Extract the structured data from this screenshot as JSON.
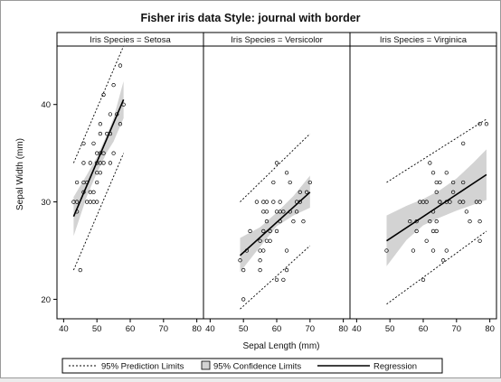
{
  "chart_data": {
    "type": "scatter",
    "title": "Fisher iris data Style: journal with border",
    "xlabel": "Sepal Length (mm)",
    "ylabel": "Sepal Width (mm)",
    "xlim": [
      38,
      82
    ],
    "ylim": [
      18,
      46
    ],
    "xticks": [
      40,
      50,
      60,
      70,
      80
    ],
    "yticks": [
      20,
      30,
      40
    ],
    "xtick_labels": [
      "40",
      "50",
      "60",
      "70",
      "80"
    ],
    "ytick_labels": [
      "20",
      "30",
      "40"
    ],
    "grid": false,
    "legend_position": "bottom",
    "legend": {
      "prediction": "95% Prediction Limits",
      "confidence": "95% Confidence Limits",
      "regression": "Regression"
    },
    "panels": [
      {
        "label": "Iris Species = Setosa",
        "x_range": [
          43,
          58
        ],
        "regression": [
          [
            43,
            28.5
          ],
          [
            58,
            40.5
          ]
        ],
        "confidence_upper": [
          [
            43,
            30.5
          ],
          [
            47,
            32.8
          ],
          [
            50,
            34.6
          ],
          [
            53,
            36.9
          ],
          [
            55,
            38.6
          ],
          [
            58,
            42.4
          ]
        ],
        "confidence_lower": [
          [
            43,
            26.5
          ],
          [
            47,
            30.6
          ],
          [
            50,
            33.0
          ],
          [
            53,
            35.1
          ],
          [
            55,
            36.2
          ],
          [
            58,
            38.6
          ]
        ],
        "prediction_upper": [
          [
            43,
            34.0
          ],
          [
            58,
            46.0
          ]
        ],
        "prediction_lower": [
          [
            43,
            23.0
          ],
          [
            58,
            35.0
          ]
        ],
        "points": [
          [
            43,
            30
          ],
          [
            44,
            29
          ],
          [
            44,
            30
          ],
          [
            44,
            32
          ],
          [
            45,
            23
          ],
          [
            46,
            31
          ],
          [
            46,
            32
          ],
          [
            46,
            34
          ],
          [
            46,
            36
          ],
          [
            47,
            32
          ],
          [
            47,
            30
          ],
          [
            48,
            30
          ],
          [
            48,
            31
          ],
          [
            48,
            34
          ],
          [
            49,
            30
          ],
          [
            49,
            31
          ],
          [
            49,
            36
          ],
          [
            50,
            30
          ],
          [
            50,
            32
          ],
          [
            50,
            33
          ],
          [
            50,
            34
          ],
          [
            50,
            35
          ],
          [
            51,
            33
          ],
          [
            51,
            34
          ],
          [
            51,
            35
          ],
          [
            51,
            37
          ],
          [
            51,
            38
          ],
          [
            52,
            34
          ],
          [
            52,
            35
          ],
          [
            52,
            41
          ],
          [
            53,
            37
          ],
          [
            54,
            34
          ],
          [
            54,
            37
          ],
          [
            54,
            39
          ],
          [
            55,
            35
          ],
          [
            55,
            42
          ],
          [
            56,
            39
          ],
          [
            57,
            38
          ],
          [
            57,
            44
          ],
          [
            58,
            40
          ]
        ]
      },
      {
        "label": "Iris Species = Versicolor",
        "x_range": [
          49,
          70
        ],
        "regression": [
          [
            49,
            24.5
          ],
          [
            70,
            31.0
          ]
        ],
        "confidence_upper": [
          [
            49,
            26.3
          ],
          [
            55,
            27.4
          ],
          [
            60,
            28.9
          ],
          [
            65,
            30.6
          ],
          [
            70,
            32.7
          ]
        ],
        "confidence_lower": [
          [
            49,
            22.8
          ],
          [
            55,
            25.4
          ],
          [
            60,
            27.5
          ],
          [
            65,
            28.6
          ],
          [
            70,
            29.4
          ]
        ],
        "prediction_upper": [
          [
            49,
            30.0
          ],
          [
            70,
            37.0
          ]
        ],
        "prediction_lower": [
          [
            49,
            19.0
          ],
          [
            70,
            25.5
          ]
        ],
        "points": [
          [
            49,
            24
          ],
          [
            50,
            20
          ],
          [
            50,
            23
          ],
          [
            51,
            25
          ],
          [
            52,
            27
          ],
          [
            54,
            30
          ],
          [
            55,
            23
          ],
          [
            55,
            24
          ],
          [
            55,
            25
          ],
          [
            55,
            26
          ],
          [
            56,
            25
          ],
          [
            56,
            27
          ],
          [
            56,
            29
          ],
          [
            56,
            30
          ],
          [
            57,
            26
          ],
          [
            57,
            28
          ],
          [
            57,
            29
          ],
          [
            57,
            30
          ],
          [
            58,
            26
          ],
          [
            58,
            27
          ],
          [
            59,
            30
          ],
          [
            59,
            32
          ],
          [
            60,
            22
          ],
          [
            60,
            27
          ],
          [
            60,
            29
          ],
          [
            60,
            34
          ],
          [
            61,
            28
          ],
          [
            61,
            29
          ],
          [
            61,
            30
          ],
          [
            62,
            22
          ],
          [
            62,
            29
          ],
          [
            63,
            23
          ],
          [
            63,
            25
          ],
          [
            63,
            33
          ],
          [
            64,
            29
          ],
          [
            64,
            32
          ],
          [
            65,
            28
          ],
          [
            66,
            29
          ],
          [
            66,
            30
          ],
          [
            67,
            30
          ],
          [
            67,
            31
          ],
          [
            68,
            28
          ],
          [
            69,
            31
          ],
          [
            70,
            32
          ]
        ]
      },
      {
        "label": "Iris Species = Virginica",
        "x_range": [
          49,
          79
        ],
        "regression": [
          [
            49,
            26.0
          ],
          [
            79,
            32.8
          ]
        ],
        "confidence_upper": [
          [
            49,
            28.6
          ],
          [
            55,
            29.6
          ],
          [
            60,
            30.3
          ],
          [
            65,
            31.2
          ],
          [
            70,
            32.4
          ],
          [
            75,
            34.0
          ],
          [
            79,
            35.4
          ]
        ],
        "confidence_lower": [
          [
            49,
            23.4
          ],
          [
            55,
            26.1
          ],
          [
            60,
            27.6
          ],
          [
            65,
            28.4
          ],
          [
            70,
            29.1
          ],
          [
            75,
            29.7
          ],
          [
            79,
            30.2
          ]
        ],
        "prediction_upper": [
          [
            49,
            32.0
          ],
          [
            79,
            38.5
          ]
        ],
        "prediction_lower": [
          [
            49,
            19.5
          ],
          [
            79,
            27.0
          ]
        ],
        "points": [
          [
            49,
            25
          ],
          [
            56,
            28
          ],
          [
            57,
            25
          ],
          [
            58,
            27
          ],
          [
            58,
            28
          ],
          [
            59,
            30
          ],
          [
            60,
            22
          ],
          [
            60,
            30
          ],
          [
            61,
            26
          ],
          [
            61,
            30
          ],
          [
            62,
            28
          ],
          [
            62,
            34
          ],
          [
            63,
            25
          ],
          [
            63,
            27
          ],
          [
            63,
            29
          ],
          [
            63,
            33
          ],
          [
            64,
            27
          ],
          [
            64,
            28
          ],
          [
            64,
            31
          ],
          [
            64,
            32
          ],
          [
            65,
            30
          ],
          [
            65,
            32
          ],
          [
            65,
            30
          ],
          [
            66,
            24
          ],
          [
            67,
            25
          ],
          [
            67,
            30
          ],
          [
            67,
            33
          ],
          [
            68,
            30
          ],
          [
            69,
            31
          ],
          [
            69,
            32
          ],
          [
            71,
            30
          ],
          [
            72,
            30
          ],
          [
            72,
            32
          ],
          [
            72,
            36
          ],
          [
            73,
            29
          ],
          [
            74,
            28
          ],
          [
            76,
            30
          ],
          [
            77,
            26
          ],
          [
            77,
            28
          ],
          [
            77,
            30
          ],
          [
            77,
            38
          ],
          [
            79,
            38
          ]
        ]
      }
    ]
  }
}
